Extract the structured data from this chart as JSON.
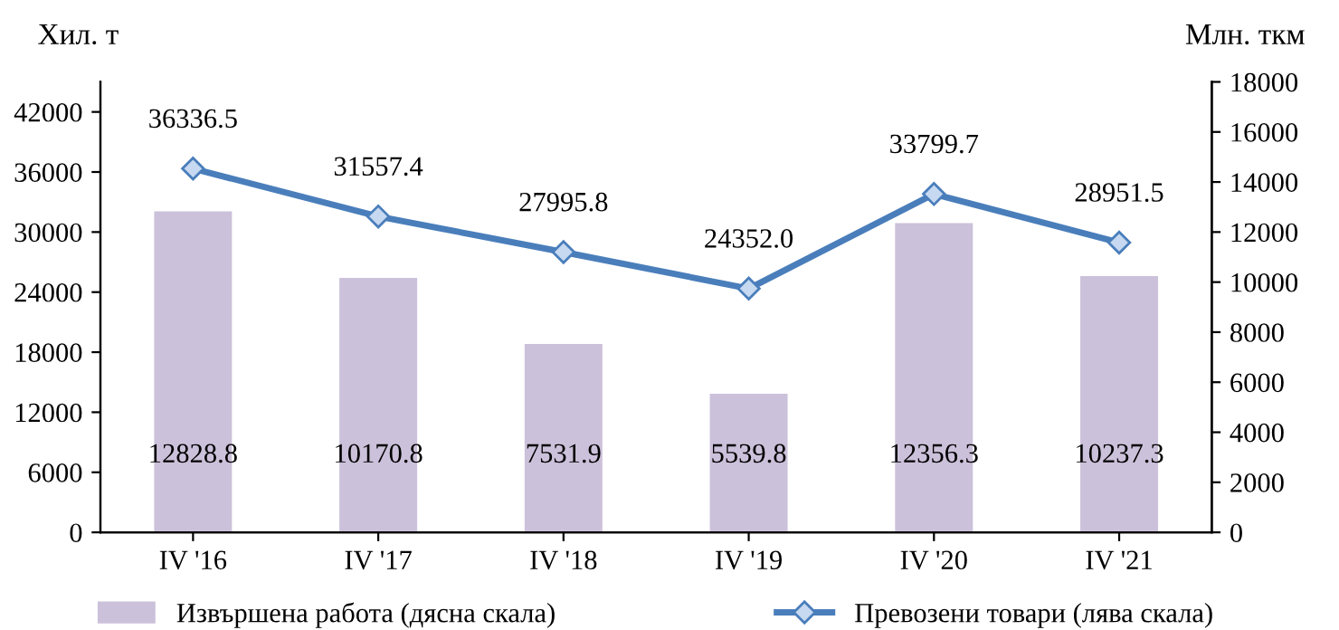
{
  "chart_data": {
    "type": "bar",
    "categories": [
      "IV '16",
      "IV '17",
      "IV '18",
      "IV '19",
      "IV '20",
      "IV '21"
    ],
    "ylabel": "Хил. т",
    "y2label": "Млн. ткм",
    "series": [
      {
        "name": "Извършена работа (дясна скала)",
        "axis": "y2",
        "color": "#ccc1da",
        "values": [
          12828.8,
          10170.8,
          7531.9,
          5539.8,
          12356.3,
          10237.3
        ],
        "value_labels": [
          "12828.8",
          "10170.8",
          "7531.9",
          "5539.8",
          "12356.3",
          "10237.3"
        ]
      },
      {
        "name": "Превозени товари (лява скала)",
        "type": "line",
        "axis": "y",
        "color": "#4a7ebb",
        "marker": "diamond",
        "values": [
          36336.5,
          31557.4,
          27995.8,
          24352,
          33799.7,
          28951.5
        ],
        "value_labels": [
          "36336.5",
          "31557.4",
          "27995.8",
          "24352.0",
          "33799.7",
          "28951.5"
        ]
      }
    ],
    "ylim": [
      0,
      45000
    ],
    "yticks": [
      0,
      6000,
      12000,
      18000,
      24000,
      30000,
      36000,
      42000
    ],
    "y2lim": [
      0,
      18000
    ],
    "y2ticks": [
      0,
      2000,
      4000,
      6000,
      8000,
      10000,
      12000,
      14000,
      16000,
      18000
    ],
    "legend": "bottom",
    "grid": false
  }
}
